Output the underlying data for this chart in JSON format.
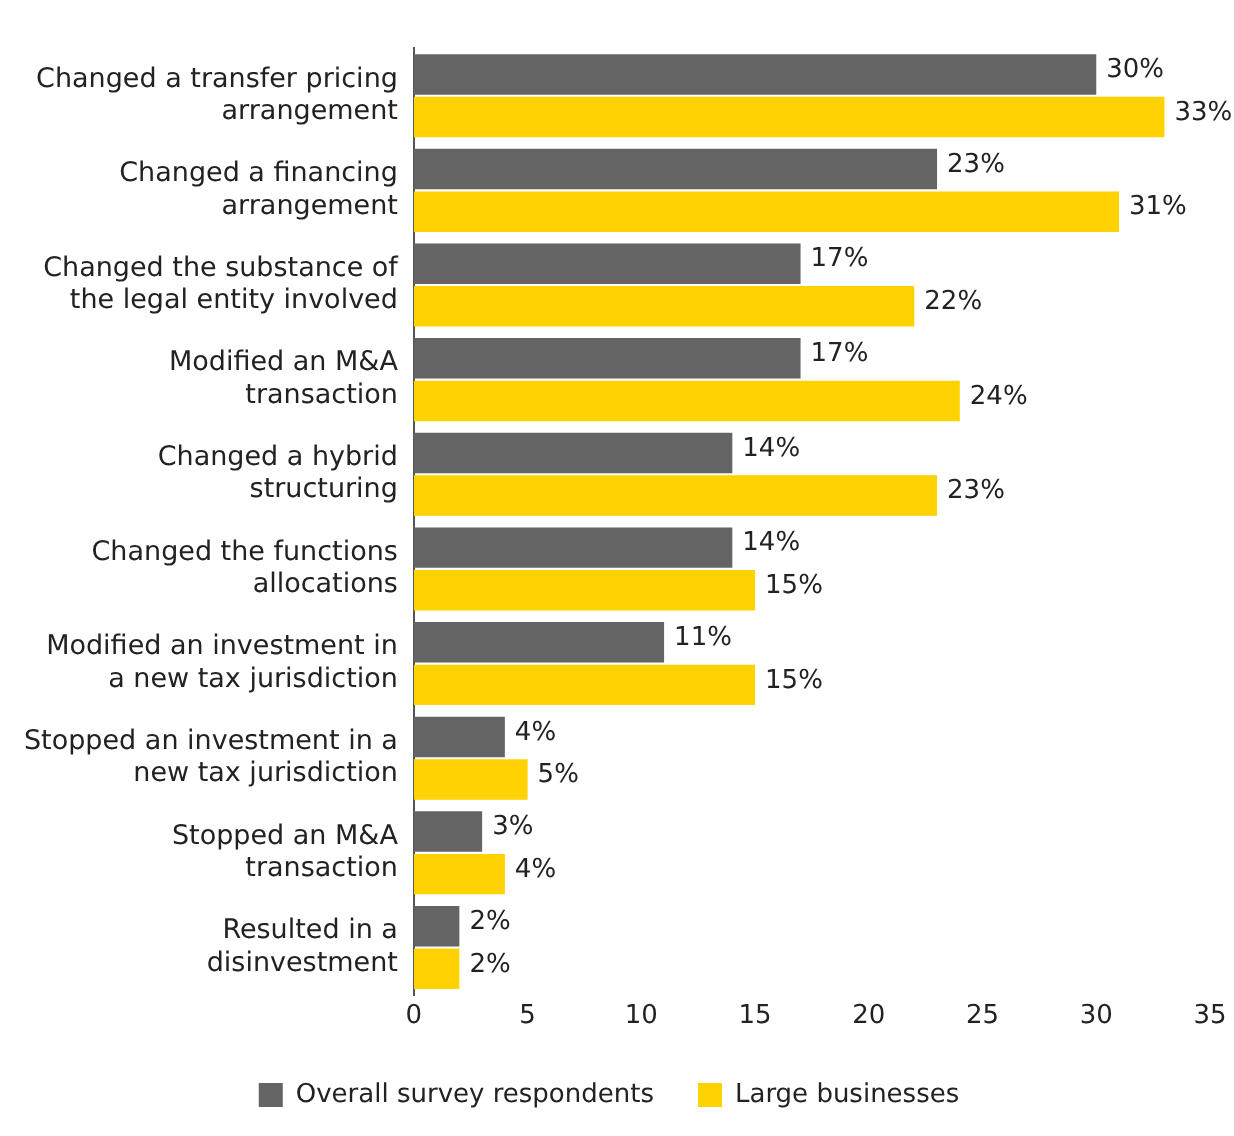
{
  "chart_data": {
    "type": "bar",
    "orientation": "horizontal",
    "categories": [
      "Changed a transfer pricing\narrangement",
      "Changed a financing\narrangement",
      "Changed the substance of\nthe legal entity involved",
      "Modified an M&A\ntransaction",
      "Changed a hybrid\nstructuring",
      "Changed the functions\nallocations",
      "Modified an investment in\na new tax jurisdiction",
      "Stopped an investment in a\nnew tax jurisdiction",
      "Stopped an M&A\ntransaction",
      "Resulted in a\ndisinvestment"
    ],
    "series": [
      {
        "name": "Overall survey respondents",
        "color": "#646464",
        "values": [
          30,
          23,
          17,
          17,
          14,
          14,
          11,
          4,
          3,
          2
        ],
        "value_labels": [
          "30%",
          "23%",
          "17%",
          "17%",
          "14%",
          "14%",
          "11%",
          "4%",
          "3%",
          "2%"
        ]
      },
      {
        "name": "Large businesses",
        "color": "#ffd200",
        "values": [
          33,
          31,
          22,
          24,
          23,
          15,
          15,
          5,
          4,
          2
        ],
        "value_labels": [
          "33%",
          "31%",
          "22%",
          "24%",
          "23%",
          "15%",
          "15%",
          "5%",
          "4%",
          "2%"
        ]
      }
    ],
    "xlim": [
      0,
      35
    ],
    "xticks": [
      0,
      5,
      10,
      15,
      20,
      25,
      30,
      35
    ],
    "grid": false,
    "legend": "bottom"
  }
}
